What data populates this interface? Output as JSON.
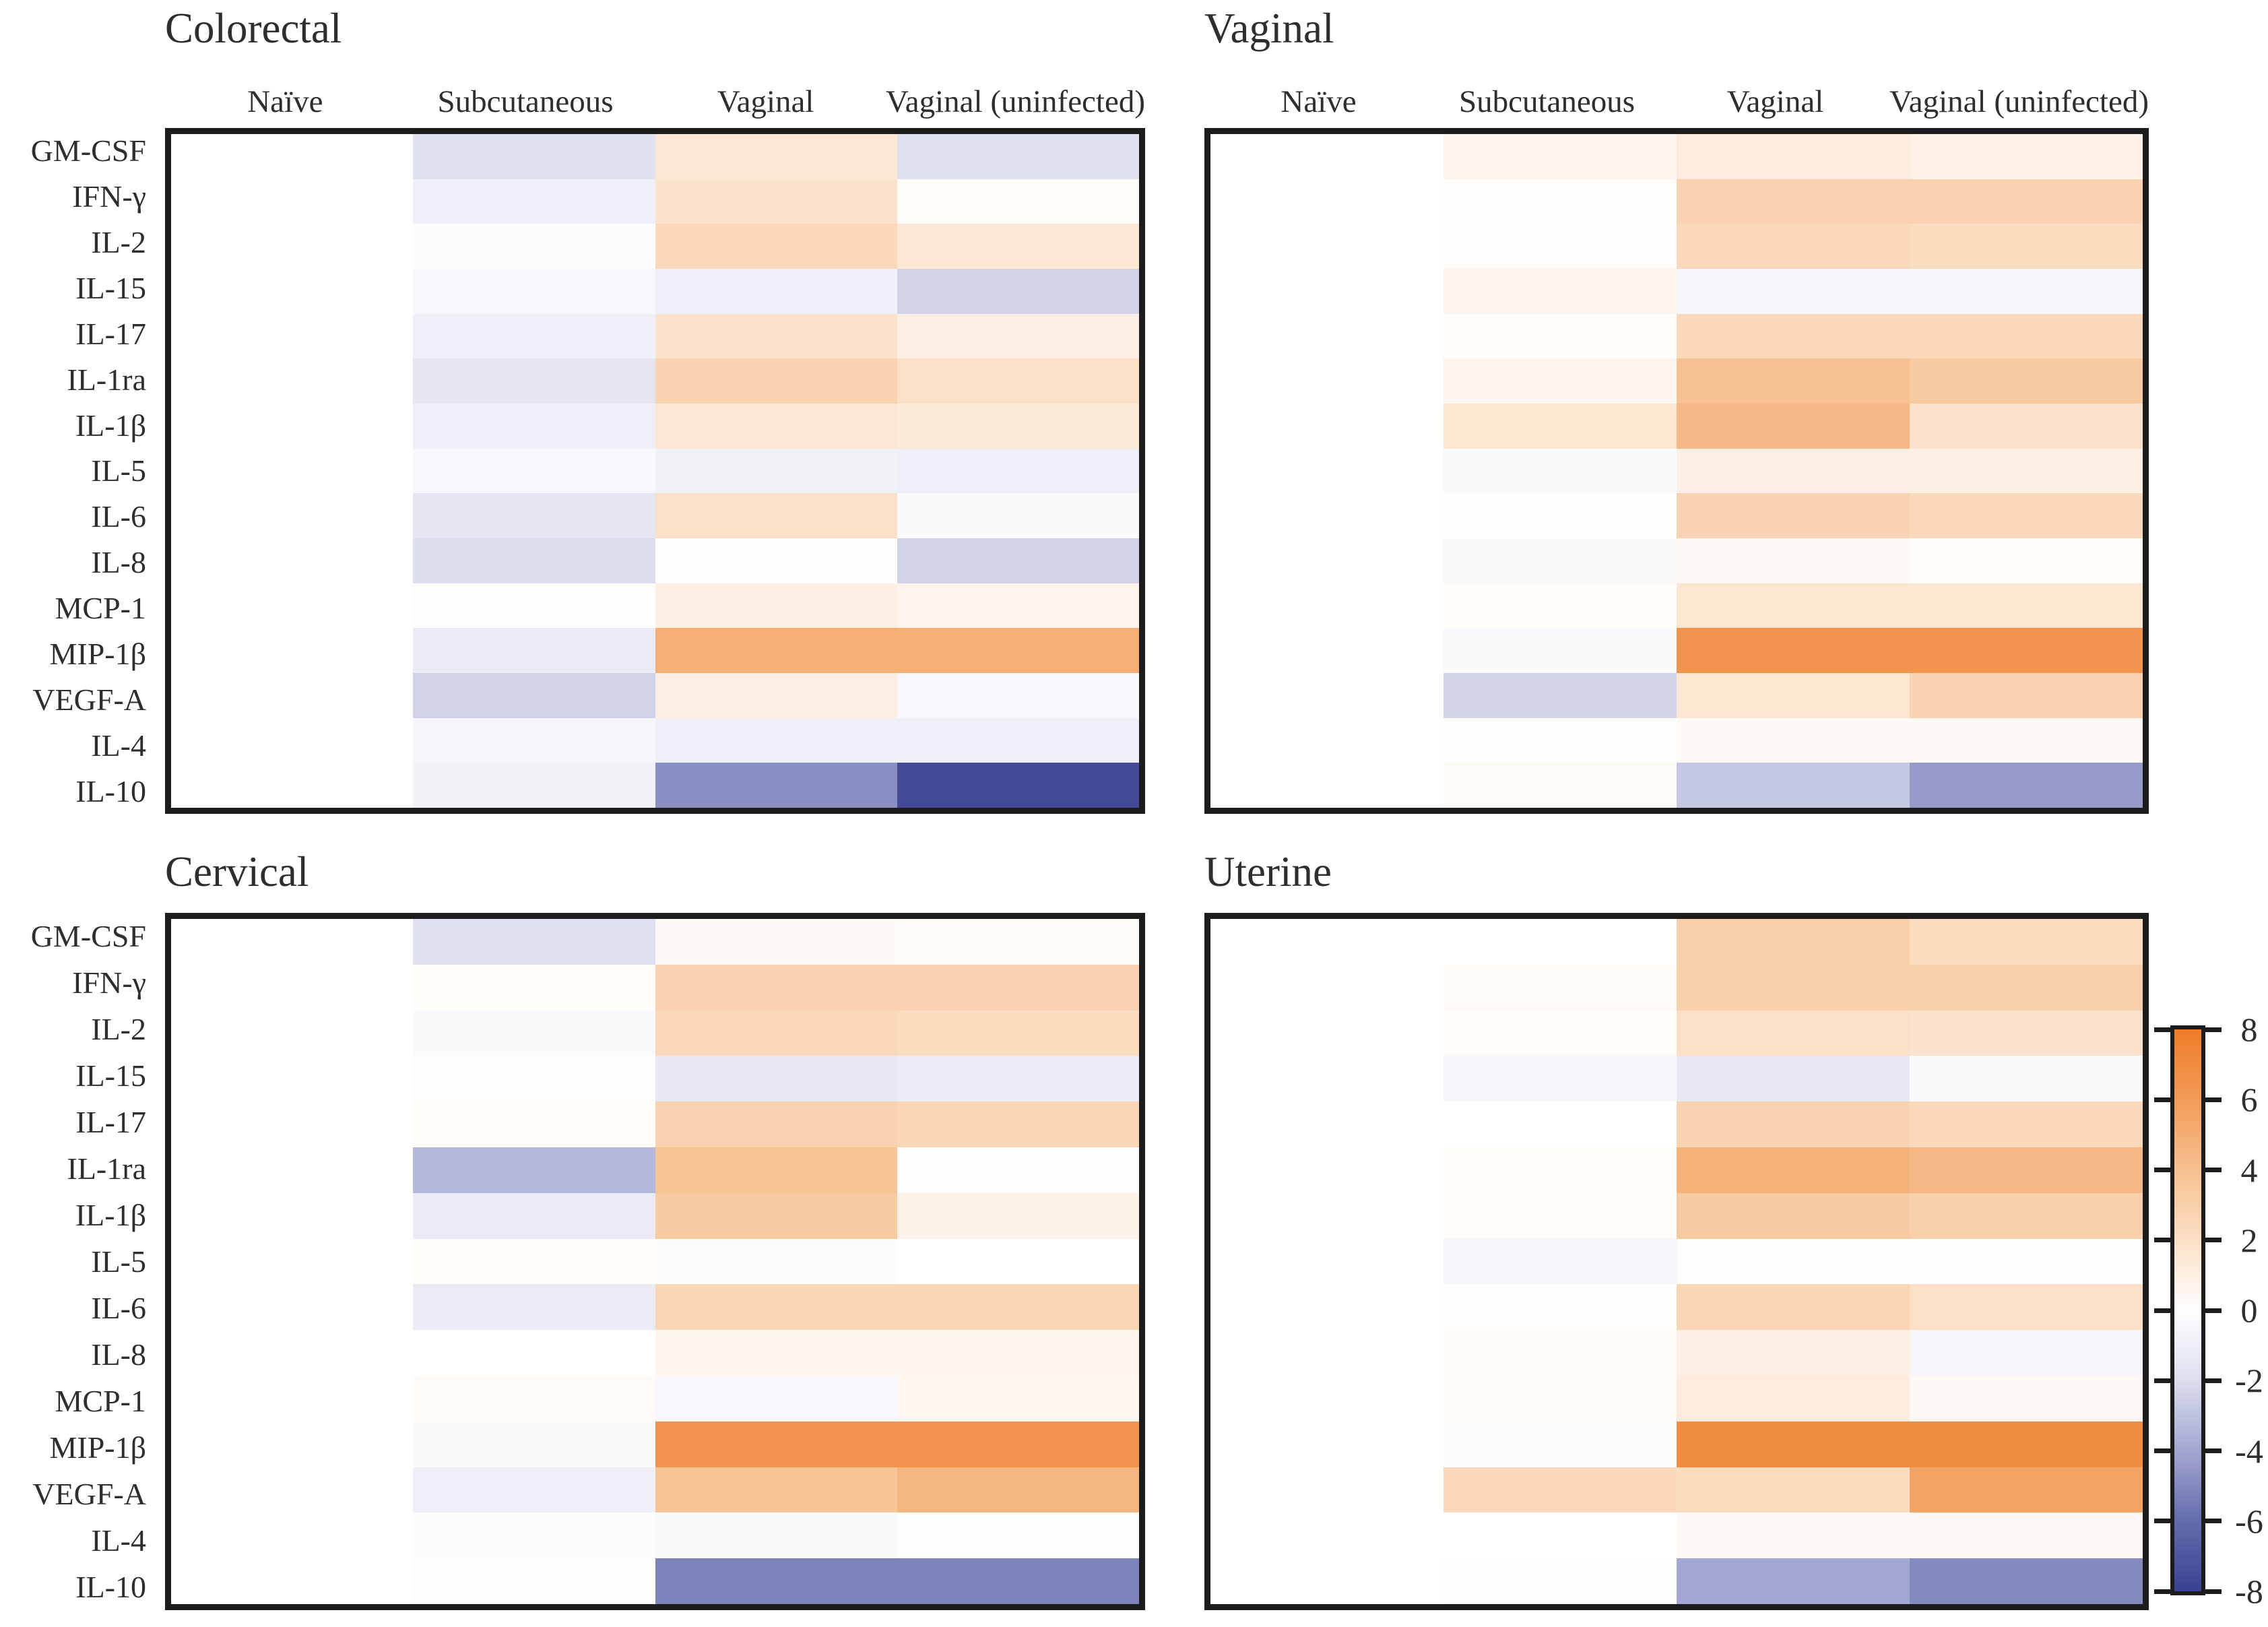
{
  "chart_data": {
    "type": "heatmap",
    "layout": "2x2 panel grid, shared row labels at left, colorbar at right",
    "x_labels": [
      "Naïve",
      "Subcutaneous",
      "Vaginal",
      "Vaginal (uninfected)"
    ],
    "y_labels": [
      "GM-CSF",
      "IFN-γ",
      "IL-2",
      "IL-15",
      "IL-17",
      "IL-1ra",
      "IL-1β",
      "IL-5",
      "IL-6",
      "IL-8",
      "MCP-1",
      "MIP-1β",
      "VEGF-A",
      "IL-4",
      "IL-10"
    ],
    "colorbar": {
      "min": -8,
      "max": 8,
      "ticks": [
        8,
        6,
        4,
        2,
        0,
        -2,
        -4,
        -6,
        -8
      ],
      "gradient_stops": [
        {
          "value": 8,
          "color": "#ee7d28"
        },
        {
          "value": 6,
          "color": "#f29b57"
        },
        {
          "value": 4,
          "color": "#f7c191"
        },
        {
          "value": 2,
          "color": "#fbdfc6"
        },
        {
          "value": 0,
          "color": "#ffffff"
        },
        {
          "value": -2,
          "color": "#dcdeee"
        },
        {
          "value": -4,
          "color": "#a3a7d1"
        },
        {
          "value": -6,
          "color": "#646cad"
        },
        {
          "value": -8,
          "color": "#3c4190"
        }
      ]
    },
    "panels": [
      {
        "title": "Colorectal",
        "has_column_headers": true,
        "values": [
          [
            0,
            -1.8,
            1.5,
            -1.8
          ],
          [
            0,
            -1.0,
            1.8,
            0.2
          ],
          [
            0,
            -0.2,
            2.4,
            1.5
          ],
          [
            0,
            -0.4,
            -1.0,
            -2.4
          ],
          [
            0,
            -1.0,
            1.8,
            1.0
          ],
          [
            0,
            -1.5,
            2.8,
            2.0
          ],
          [
            0,
            -0.9,
            1.5,
            1.4
          ],
          [
            0,
            -0.4,
            -0.8,
            -0.9
          ],
          [
            0,
            -1.5,
            2.0,
            -0.3
          ],
          [
            0,
            -2.0,
            0.1,
            -2.4
          ],
          [
            0,
            0.1,
            1.0,
            0.7
          ],
          [
            0,
            -1.2,
            5.0,
            5.0
          ],
          [
            0,
            -2.4,
            1.0,
            -0.4
          ],
          [
            0,
            -0.6,
            -1.0,
            -1.0
          ],
          [
            0,
            -0.8,
            -4.8,
            -7.6
          ]
        ]
      },
      {
        "title": "Vaginal",
        "has_column_headers": true,
        "values": [
          [
            0,
            0.6,
            1.2,
            0.9
          ],
          [
            0,
            0.1,
            2.8,
            2.8
          ],
          [
            0,
            0.1,
            2.4,
            2.2
          ],
          [
            0,
            0.7,
            -0.6,
            -0.5
          ],
          [
            0,
            0.2,
            2.4,
            2.4
          ],
          [
            0,
            0.6,
            4.0,
            3.4
          ],
          [
            0,
            1.6,
            4.4,
            1.8
          ],
          [
            0,
            -0.3,
            1.0,
            1.0
          ],
          [
            0,
            0.1,
            2.8,
            2.4
          ],
          [
            0,
            -0.3,
            0.4,
            0.2
          ],
          [
            0,
            0.2,
            1.6,
            1.6
          ],
          [
            0,
            -0.3,
            6.4,
            6.4
          ],
          [
            0,
            -2.4,
            1.6,
            2.8
          ],
          [
            0,
            -0.1,
            0.4,
            0.4
          ],
          [
            0,
            0.3,
            -2.8,
            -4.4
          ]
        ]
      },
      {
        "title": "Cervical",
        "has_column_headers": false,
        "values": [
          [
            0,
            -1.8,
            0.4,
            0.3
          ],
          [
            0,
            0.2,
            2.8,
            2.8
          ],
          [
            0,
            -0.3,
            2.4,
            2.2
          ],
          [
            0,
            0.1,
            -1.4,
            -1.2
          ],
          [
            0,
            0.2,
            2.8,
            2.6
          ],
          [
            0,
            -3.4,
            3.8,
            0.1
          ],
          [
            0,
            -1.2,
            3.4,
            0.8
          ],
          [
            0,
            0.2,
            -0.2,
            0.0
          ],
          [
            0,
            -1.2,
            2.6,
            2.6
          ],
          [
            0,
            0.0,
            0.6,
            0.6
          ],
          [
            0,
            0.3,
            -0.4,
            0.5
          ],
          [
            0,
            -0.3,
            6.4,
            6.4
          ],
          [
            0,
            -1.0,
            3.8,
            4.6
          ],
          [
            0,
            -0.2,
            -0.3,
            0.1
          ],
          [
            0,
            0.1,
            -5.2,
            -5.2
          ]
        ]
      },
      {
        "title": "Uterine",
        "has_column_headers": false,
        "values": [
          [
            0,
            0.0,
            3.0,
            2.2
          ],
          [
            0,
            0.3,
            3.0,
            3.0
          ],
          [
            0,
            0.2,
            2.0,
            1.8
          ],
          [
            0,
            -0.5,
            -1.4,
            -0.3
          ],
          [
            0,
            0.0,
            2.8,
            2.4
          ],
          [
            0,
            0.2,
            4.8,
            4.4
          ],
          [
            0,
            0.2,
            3.4,
            3.0
          ],
          [
            0,
            -0.6,
            -0.1,
            -0.1
          ],
          [
            0,
            0.1,
            2.6,
            2.0
          ],
          [
            0,
            0.3,
            1.0,
            -0.6
          ],
          [
            0,
            0.3,
            1.2,
            0.4
          ],
          [
            0,
            -0.2,
            7.0,
            7.0
          ],
          [
            0,
            2.4,
            2.2,
            5.6
          ],
          [
            0,
            0.0,
            0.4,
            0.4
          ],
          [
            0,
            0.1,
            -4.0,
            -5.0
          ]
        ]
      }
    ]
  }
}
